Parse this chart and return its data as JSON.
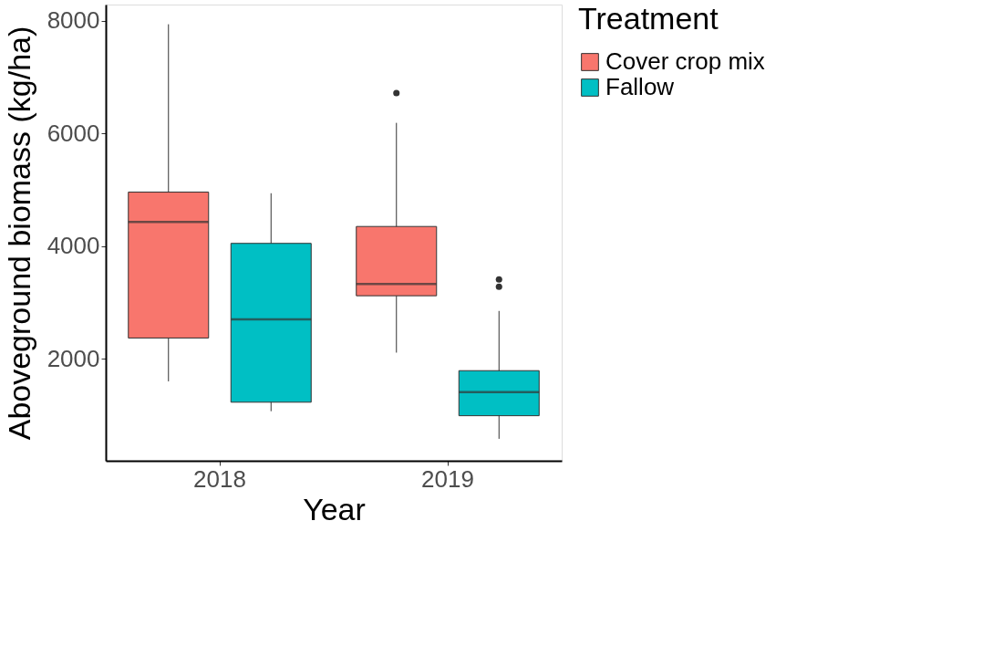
{
  "chart_data": {
    "type": "box",
    "xlabel": "Year",
    "ylabel": "Aboveground biomass (kg/ha)",
    "legend_title": "Treatment",
    "categories": [
      "2018",
      "2019"
    ],
    "ylim": [
      190,
      8290
    ],
    "yticks": [
      2000,
      4000,
      6000,
      8000
    ],
    "grid": false,
    "legend": "right",
    "series": [
      {
        "name": "Cover crop mix",
        "color": "#f8766d",
        "boxes": [
          {
            "low": 1600,
            "q1": 2370,
            "median": 4430,
            "q3": 4960,
            "high": 7940
          },
          {
            "low": 2110,
            "q1": 3120,
            "median": 3330,
            "q3": 4350,
            "high": 6190,
            "outliers": [
              6720
            ]
          }
        ]
      },
      {
        "name": "Fallow",
        "color": "#00bfc4",
        "boxes": [
          {
            "low": 1070,
            "q1": 1230,
            "median": 2700,
            "q3": 4050,
            "high": 4940
          },
          {
            "low": 580,
            "q1": 990,
            "median": 1410,
            "q3": 1790,
            "high": 2850,
            "outliers": [
              3280,
              3410
            ]
          }
        ]
      }
    ]
  }
}
